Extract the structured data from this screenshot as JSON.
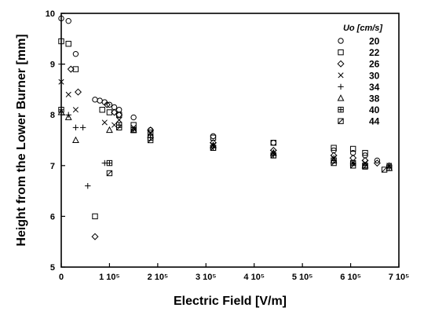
{
  "chart_data": {
    "type": "scatter",
    "xlabel": "Electric Field [V/m]",
    "ylabel": "Height from the Lower Burner [mm]",
    "xlim": [
      0,
      700000
    ],
    "ylim": [
      5,
      10
    ],
    "x_ticks": [
      {
        "value": 0,
        "label": "0"
      },
      {
        "value": 100000,
        "label": "1 10⁵"
      },
      {
        "value": 200000,
        "label": "2 10⁵"
      },
      {
        "value": 300000,
        "label": "3 10⁵"
      },
      {
        "value": 400000,
        "label": "4 10⁵"
      },
      {
        "value": 500000,
        "label": "5 10⁵"
      },
      {
        "value": 600000,
        "label": "6 10⁵"
      },
      {
        "value": 700000,
        "label": "7 10⁵"
      }
    ],
    "y_ticks": [
      {
        "value": 5,
        "label": "5"
      },
      {
        "value": 6,
        "label": "6"
      },
      {
        "value": 7,
        "label": "7"
      },
      {
        "value": 8,
        "label": "8"
      },
      {
        "value": 9,
        "label": "9"
      },
      {
        "value": 10,
        "label": "10"
      }
    ],
    "legend": {
      "title": "Uo [cm/s]",
      "position": "top-right"
    },
    "grid": false,
    "series": [
      {
        "name": "20",
        "marker": "circle",
        "x": [
          0,
          15000,
          30000,
          70000,
          80000,
          90000,
          100000,
          110000,
          120000,
          150000,
          185000,
          315000,
          440000,
          565000,
          605000,
          630000,
          655000,
          680000
        ],
        "y": [
          9.9,
          9.85,
          9.2,
          8.3,
          8.28,
          8.25,
          8.2,
          8.15,
          8.1,
          7.95,
          7.7,
          7.58,
          7.45,
          7.3,
          7.25,
          7.2,
          7.1,
          7.0
        ]
      },
      {
        "name": "22",
        "marker": "square",
        "x": [
          0,
          15000,
          30000,
          70000,
          85000,
          100000,
          120000,
          150000,
          185000,
          315000,
          440000,
          565000,
          605000,
          630000
        ],
        "y": [
          9.45,
          9.4,
          8.9,
          6.0,
          8.1,
          8.05,
          8.0,
          7.8,
          7.65,
          7.55,
          7.45,
          7.35,
          7.33,
          7.25
        ]
      },
      {
        "name": "26",
        "marker": "diamond",
        "x": [
          20000,
          35000,
          70000,
          95000,
          110000,
          120000,
          185000,
          315000,
          440000,
          565000,
          605000,
          630000,
          655000
        ],
        "y": [
          8.9,
          8.45,
          5.6,
          8.2,
          8.05,
          8.0,
          7.7,
          7.45,
          7.3,
          7.2,
          7.15,
          7.1,
          7.05
        ]
      },
      {
        "name": "30",
        "marker": "cross",
        "x": [
          0,
          15000,
          30000,
          90000,
          110000,
          120000,
          150000,
          185000,
          315000,
          440000,
          565000,
          605000,
          630000,
          680000
        ],
        "y": [
          8.65,
          8.4,
          8.1,
          7.85,
          7.8,
          7.9,
          7.75,
          7.65,
          7.4,
          7.25,
          7.15,
          7.05,
          7.05,
          7.0
        ]
      },
      {
        "name": "34",
        "marker": "plus",
        "x": [
          0,
          15000,
          30000,
          45000,
          55000,
          90000,
          185000,
          315000,
          440000,
          565000,
          605000,
          680000
        ],
        "y": [
          9.0,
          8.0,
          7.75,
          7.75,
          6.6,
          7.05,
          7.6,
          7.4,
          7.25,
          7.15,
          7.05,
          7.0
        ]
      },
      {
        "name": "38",
        "marker": "triangle",
        "x": [
          0,
          15000,
          30000,
          100000,
          150000,
          185000,
          315000,
          440000,
          565000,
          630000,
          680000
        ],
        "y": [
          8.05,
          7.95,
          7.5,
          7.7,
          7.7,
          7.6,
          7.4,
          7.25,
          7.1,
          7.0,
          6.95
        ]
      },
      {
        "name": "40",
        "marker": "square-plus",
        "x": [
          0,
          100000,
          120000,
          150000,
          185000,
          315000,
          440000,
          565000,
          605000,
          630000,
          680000
        ],
        "y": [
          8.1,
          7.05,
          7.8,
          7.7,
          7.55,
          7.35,
          7.2,
          7.1,
          7.05,
          7.0,
          6.95
        ]
      },
      {
        "name": "44",
        "marker": "square-slash",
        "x": [
          100000,
          120000,
          150000,
          185000,
          315000,
          440000,
          565000,
          605000,
          630000,
          670000
        ],
        "y": [
          6.85,
          7.75,
          7.7,
          7.5,
          7.35,
          7.2,
          7.05,
          7.0,
          6.98,
          6.92
        ]
      }
    ]
  }
}
